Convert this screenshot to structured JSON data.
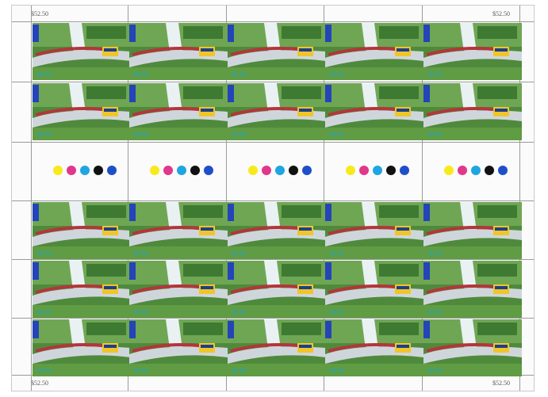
{
  "sheet": {
    "sheet_value": "$52.50",
    "stamp_denomination": "$2.50",
    "colour_dots": [
      "#f7ea1a",
      "#e0388a",
      "#1fa6e0",
      "#111111",
      "#1f4fc8"
    ]
  }
}
